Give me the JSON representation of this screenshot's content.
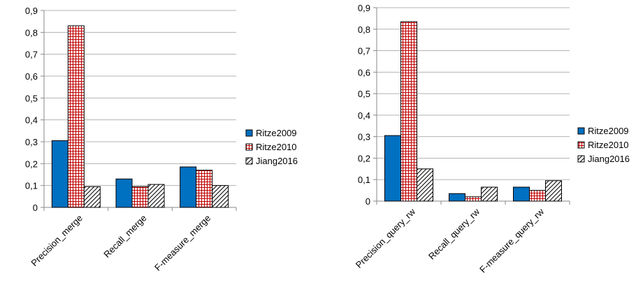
{
  "chart_data": [
    {
      "type": "bar",
      "categories": [
        "Precision_merge",
        "Recall_merge",
        "F-measure_merge"
      ],
      "series": [
        {
          "name": "Ritze2009",
          "values": [
            0.305,
            0.13,
            0.185
          ],
          "color": "#0070c0",
          "pattern": "solid"
        },
        {
          "name": "Ritze2010",
          "values": [
            0.83,
            0.095,
            0.17
          ],
          "color": "#c00000",
          "pattern": "grid"
        },
        {
          "name": "Jiang2016",
          "values": [
            0.095,
            0.105,
            0.1
          ],
          "color": "#000000",
          "pattern": "diagonal"
        }
      ],
      "ylim": [
        0,
        0.9
      ],
      "yticks": [
        "0",
        "0,1",
        "0,2",
        "0,3",
        "0,4",
        "0,5",
        "0,6",
        "0,7",
        "0,8",
        "0,9"
      ],
      "grid": true,
      "legend": "right"
    },
    {
      "type": "bar",
      "categories": [
        "Precision_query_rw",
        "Recall_query_rw",
        "F-measure_query_rw"
      ],
      "series": [
        {
          "name": "Ritze2009",
          "values": [
            0.305,
            0.035,
            0.065
          ],
          "color": "#0070c0",
          "pattern": "solid"
        },
        {
          "name": "Ritze2010",
          "values": [
            0.835,
            0.02,
            0.05
          ],
          "color": "#c00000",
          "pattern": "grid"
        },
        {
          "name": "Jiang2016",
          "values": [
            0.15,
            0.065,
            0.095
          ],
          "color": "#000000",
          "pattern": "diagonal"
        }
      ],
      "ylim": [
        0,
        0.9
      ],
      "yticks": [
        "0",
        "0,1",
        "0,2",
        "0,3",
        "0,4",
        "0,5",
        "0,6",
        "0,7",
        "0,8",
        "0,9"
      ],
      "grid": true,
      "legend": "right"
    }
  ]
}
